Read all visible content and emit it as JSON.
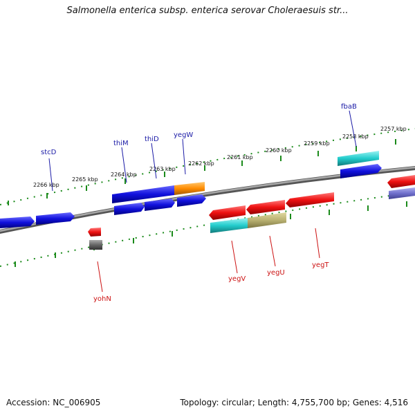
{
  "title": "Salmonella enterica subsp. enterica serovar Choleraesuis str...",
  "footer": {
    "accession": "Accession: NC_006905",
    "summary": "Topology: circular; Length: 4,755,700 bp; Genes: 4,516"
  },
  "scale_labels": [
    "2266 kbp",
    "2265 kbp",
    "2264 kbp",
    "2263 kbp",
    "2262 kbp",
    "2261 kbp",
    "2260 kbp",
    "2259 kbp",
    "2258 kbp",
    "2257 kbp"
  ],
  "gene_labels_top": [
    "stcD",
    "thiM",
    "thiD",
    "yegW",
    "fbaB"
  ],
  "gene_labels_bottom": [
    "yohN",
    "yegV",
    "yegU",
    "yegT"
  ],
  "colors": {
    "blue": "#1111dd",
    "red": "#ee1111",
    "cyan": "#22cccc",
    "orange": "#ff8c00",
    "khaki": "#b8b070",
    "gray": "#666666",
    "purple": "#7070cc",
    "tick": "#1a8a1a",
    "backbone": "#808080"
  }
}
